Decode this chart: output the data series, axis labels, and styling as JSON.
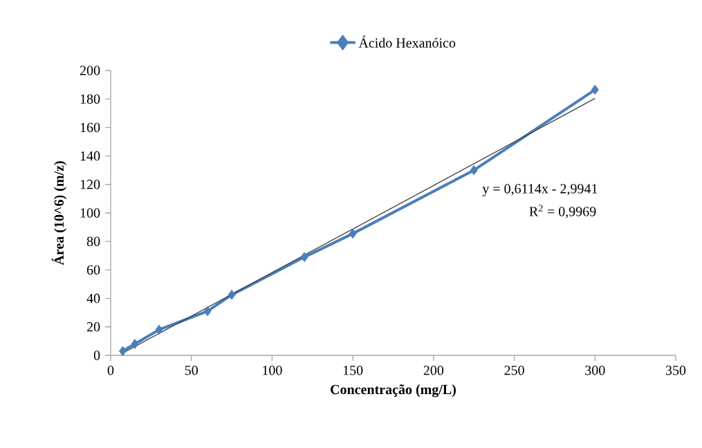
{
  "chart_data": {
    "type": "line",
    "xlabel": "Concentração (mg/L)",
    "ylabel": "Área (10^6) (m/z)",
    "series": [
      {
        "name": "Ácido Hexanóico",
        "color": "#4a7ebb",
        "x": [
          7.5,
          15,
          30,
          60,
          75,
          120,
          150,
          225,
          300
        ],
        "values": [
          3,
          8,
          18,
          31,
          42.5,
          69,
          85.5,
          130,
          186.5
        ]
      },
      {
        "type": "line",
        "color": "#404040",
        "marker": "none",
        "x": [
          7.5,
          300
        ],
        "values": [
          1.6,
          180.4
        ]
      }
    ],
    "xlim": [
      0,
      350
    ],
    "ylim": [
      0,
      200
    ],
    "xticks": [
      0,
      50,
      100,
      150,
      200,
      250,
      300,
      350
    ],
    "yticks": [
      0,
      20,
      40,
      60,
      80,
      100,
      120,
      140,
      160,
      180,
      200
    ],
    "annotations": [
      "y = 0,6114x - 2,9941",
      "R$^{2}$ = 0,9969"
    ],
    "legend": "top",
    "marker": "diamond",
    "line_style": "solid",
    "grid": false
  }
}
